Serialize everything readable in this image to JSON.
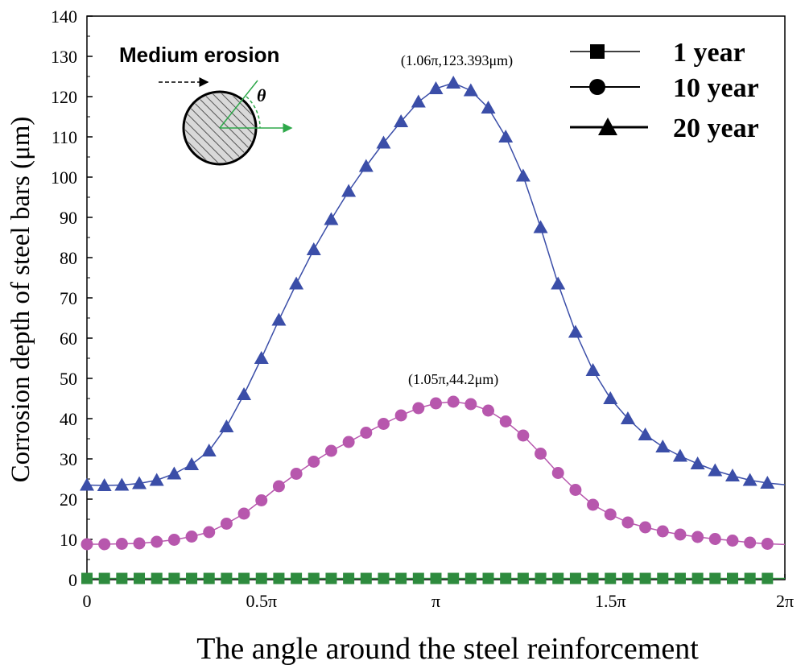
{
  "chart_data": {
    "type": "line",
    "title": "",
    "xlabel": "The angle around the steel reinforcement",
    "ylabel": "Corrosion depth of steel bars (μm)",
    "xlim": [
      0,
      2
    ],
    "xunit": "π",
    "ylim": [
      0,
      140
    ],
    "x_ticks": [
      0,
      0.5,
      1,
      1.5,
      2
    ],
    "x_tick_labels": [
      "0",
      "0.5π",
      "π",
      "1.5π",
      "2π"
    ],
    "y_ticks": [
      0,
      10,
      20,
      30,
      40,
      50,
      60,
      70,
      80,
      90,
      100,
      110,
      120,
      130,
      140
    ],
    "y_tick_labels": [
      "0",
      "10",
      "20",
      "30",
      "40",
      "50",
      "60",
      "70",
      "80",
      "90",
      "100",
      "110",
      "120",
      "130",
      "140"
    ],
    "grid": false,
    "legend_position": "top-right",
    "x": [
      0,
      0.05,
      0.1,
      0.15,
      0.2,
      0.25,
      0.3,
      0.35,
      0.4,
      0.45,
      0.5,
      0.55,
      0.6,
      0.65,
      0.7,
      0.75,
      0.8,
      0.85,
      0.9,
      0.95,
      1.0,
      1.05,
      1.1,
      1.15,
      1.2,
      1.25,
      1.3,
      1.35,
      1.4,
      1.45,
      1.5,
      1.55,
      1.6,
      1.65,
      1.7,
      1.75,
      1.8,
      1.85,
      1.9,
      1.95
    ],
    "series": [
      {
        "name": "1 year",
        "marker": "square",
        "color": "#2e8b3e",
        "values": [
          0.3,
          0.3,
          0.3,
          0.3,
          0.3,
          0.3,
          0.3,
          0.3,
          0.3,
          0.3,
          0.3,
          0.3,
          0.3,
          0.3,
          0.3,
          0.3,
          0.3,
          0.3,
          0.3,
          0.3,
          0.3,
          0.3,
          0.3,
          0.3,
          0.3,
          0.3,
          0.3,
          0.3,
          0.3,
          0.3,
          0.3,
          0.3,
          0.3,
          0.3,
          0.3,
          0.3,
          0.3,
          0.3,
          0.3,
          0.3
        ]
      },
      {
        "name": "10 year",
        "marker": "circle",
        "color": "#b757ad",
        "values": [
          8.8,
          8.8,
          8.9,
          9.0,
          9.4,
          9.9,
          10.7,
          11.8,
          13.9,
          16.4,
          19.7,
          23.2,
          26.3,
          29.3,
          32.0,
          34.2,
          36.5,
          38.7,
          40.8,
          42.6,
          43.8,
          44.2,
          43.6,
          42.0,
          39.3,
          35.8,
          31.3,
          26.5,
          22.3,
          18.6,
          16.2,
          14.2,
          13.0,
          12.0,
          11.2,
          10.6,
          10.1,
          9.7,
          9.2,
          8.9
        ]
      },
      {
        "name": "20 year",
        "marker": "triangle",
        "color": "#3b4ea8",
        "values": [
          23.5,
          23.4,
          23.5,
          23.9,
          24.7,
          26.3,
          28.6,
          32.0,
          38.0,
          46.0,
          55.0,
          64.5,
          73.5,
          82.0,
          89.5,
          96.5,
          102.7,
          108.5,
          113.8,
          118.7,
          122.0,
          123.393,
          121.5,
          117.2,
          110.0,
          100.3,
          87.5,
          73.5,
          61.5,
          52.0,
          45.0,
          40.0,
          36.0,
          33.0,
          30.7,
          28.8,
          27.1,
          25.8,
          24.7,
          24.0
        ]
      }
    ],
    "annotations": [
      {
        "text": "(1.06π,123.393μm)",
        "x": 1.06,
        "y": 123.393
      },
      {
        "text": "(1.05π,44.2μm)",
        "x": 1.05,
        "y": 44.2
      }
    ]
  },
  "inset": {
    "title": "Medium erosion",
    "angle_symbol": "θ"
  }
}
